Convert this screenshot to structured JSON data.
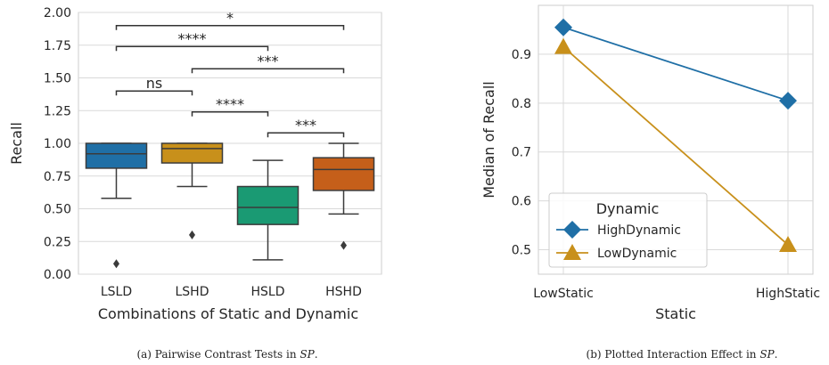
{
  "chart_data": [
    {
      "type": "box",
      "xlabel": "Combinations of Static and Dynamic",
      "ylabel": "Recall",
      "ylim": [
        0,
        2.0
      ],
      "yticks": [
        "0.00",
        "0.25",
        "0.50",
        "0.75",
        "1.00",
        "1.25",
        "1.50",
        "1.75",
        "2.00"
      ],
      "categories": [
        "LSLD",
        "LSHD",
        "HSLD",
        "HSHD"
      ],
      "colors": [
        "#1f6fa6",
        "#c8901b",
        "#1a9a73",
        "#c55f1a"
      ],
      "boxes": [
        {
          "q1": 0.81,
          "median": 0.92,
          "q3": 1.0,
          "whisker_low": 0.58,
          "whisker_high": 1.0,
          "outliers": [
            0.08
          ]
        },
        {
          "q1": 0.85,
          "median": 0.96,
          "q3": 1.0,
          "whisker_low": 0.67,
          "whisker_high": 1.0,
          "outliers": [
            0.3
          ]
        },
        {
          "q1": 0.38,
          "median": 0.51,
          "q3": 0.67,
          "whisker_low": 0.11,
          "whisker_high": 0.87,
          "outliers": []
        },
        {
          "q1": 0.64,
          "median": 0.8,
          "q3": 0.89,
          "whisker_low": 0.46,
          "whisker_high": 1.0,
          "outliers": [
            0.22
          ]
        }
      ],
      "annotations": [
        {
          "from": 0,
          "to": 1,
          "y": 1.4,
          "label": "ns"
        },
        {
          "from": 1,
          "to": 2,
          "y": 1.24,
          "label": "****"
        },
        {
          "from": 2,
          "to": 3,
          "y": 1.08,
          "label": "***"
        },
        {
          "from": 0,
          "to": 2,
          "y": 1.74,
          "label": "****"
        },
        {
          "from": 1,
          "to": 3,
          "y": 1.57,
          "label": "***"
        },
        {
          "from": 0,
          "to": 3,
          "y": 1.9,
          "label": "*"
        }
      ],
      "grid": true,
      "caption": {
        "prefix": "(a)  Pairwise Contrast Tests in ",
        "italic": "SP",
        "suffix": "."
      }
    },
    {
      "type": "line",
      "xlabel": "Static",
      "ylabel": "Median of Recall",
      "categories": [
        "LowStatic",
        "HighStatic"
      ],
      "ylim": [
        0.45,
        1.0
      ],
      "yticks": [
        "0.5",
        "0.6",
        "0.7",
        "0.8",
        "0.9"
      ],
      "series": [
        {
          "name": "HighDynamic",
          "values": [
            0.955,
            0.805
          ],
          "color": "#1f6fa6",
          "marker": "diamond"
        },
        {
          "name": "LowDynamic",
          "values": [
            0.915,
            0.51
          ],
          "color": "#c8901b",
          "marker": "triangle"
        }
      ],
      "legend": {
        "title": "Dynamic",
        "placement": "lower-left"
      },
      "grid": true,
      "caption": {
        "prefix": "(b)  Plotted Interaction Effect in ",
        "italic": "SP",
        "suffix": "."
      }
    }
  ]
}
